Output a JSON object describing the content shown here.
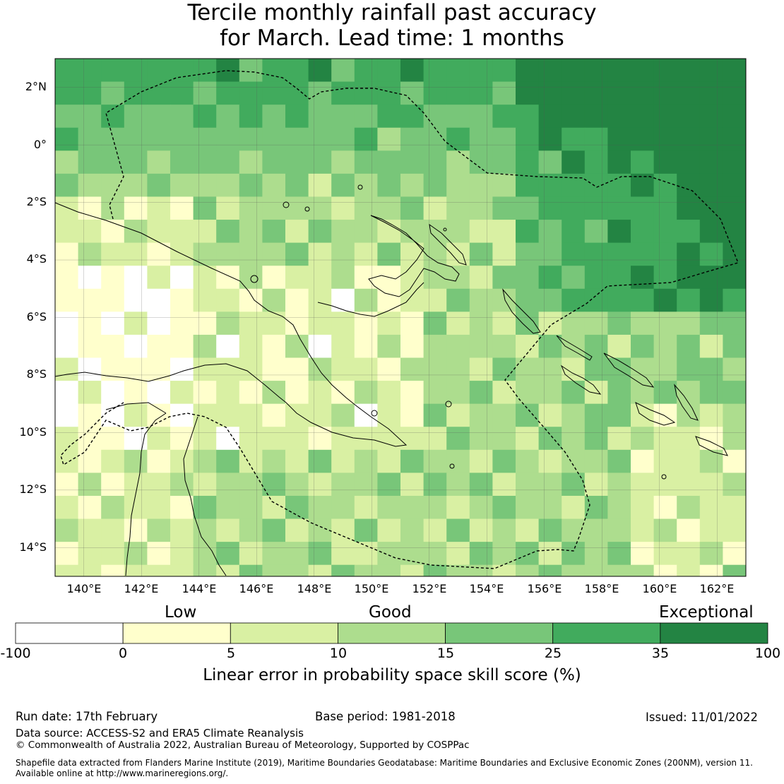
{
  "title": {
    "line1": "Tercile monthly rainfall past accuracy",
    "line2": "for March. Lead time: 1 months"
  },
  "map": {
    "lat_labels": [
      "2°N",
      "0°",
      "2°S",
      "4°S",
      "6°S",
      "8°S",
      "10°S",
      "12°S",
      "14°S"
    ],
    "lon_labels": [
      "140°E",
      "142°E",
      "144°E",
      "146°E",
      "148°E",
      "150°E",
      "152°E",
      "154°E",
      "156°E",
      "158°E",
      "160°E",
      "162°E"
    ],
    "extent": {
      "lon_min": 139,
      "lon_max": 163,
      "lat_min": -15,
      "lat_max": 3
    },
    "colors": {
      "land_outline": "#000000",
      "eez_line": "#000000",
      "grid": "#555555"
    }
  },
  "colorbar": {
    "category_labels": {
      "low": "Low",
      "good": "Good",
      "exceptional": "Exceptional"
    },
    "ticks": [
      "-100",
      "0",
      "5",
      "10",
      "15",
      "25",
      "35",
      "100"
    ],
    "bins": [
      {
        "from": -100,
        "to": 0,
        "color": "#ffffff"
      },
      {
        "from": 0,
        "to": 5,
        "color": "#ffffcc"
      },
      {
        "from": 5,
        "to": 10,
        "color": "#d9f0a3"
      },
      {
        "from": 10,
        "to": 15,
        "color": "#addd8e"
      },
      {
        "from": 15,
        "to": 25,
        "color": "#78c679"
      },
      {
        "from": 25,
        "to": 35,
        "color": "#41ab5d"
      },
      {
        "from": 35,
        "to": 100,
        "color": "#238443"
      }
    ],
    "axis_title": "Linear error in probability space skill score (%)"
  },
  "footer": {
    "run_date": "Run date: 17th February",
    "base_period": "Base period: 1981-2018",
    "issued": "Issued: 11/01/2022",
    "data_source": "Data source: ACCESS-S2 and ERA5 Climate Reanalysis",
    "copyright": "© Commonwealth of Australia 2022, Australian Bureau of Meteorology, Supported by COSPPac",
    "shapefile_line1": "Shapefile data extracted from Flanders Marine Institute (2019), Maritime Boundaries Geodatabase: Maritime Boundaries and Exclusive Economic Zones (200NM), version 11.",
    "shapefile_line2": "Available online at http://www.marineregions.org/."
  }
}
